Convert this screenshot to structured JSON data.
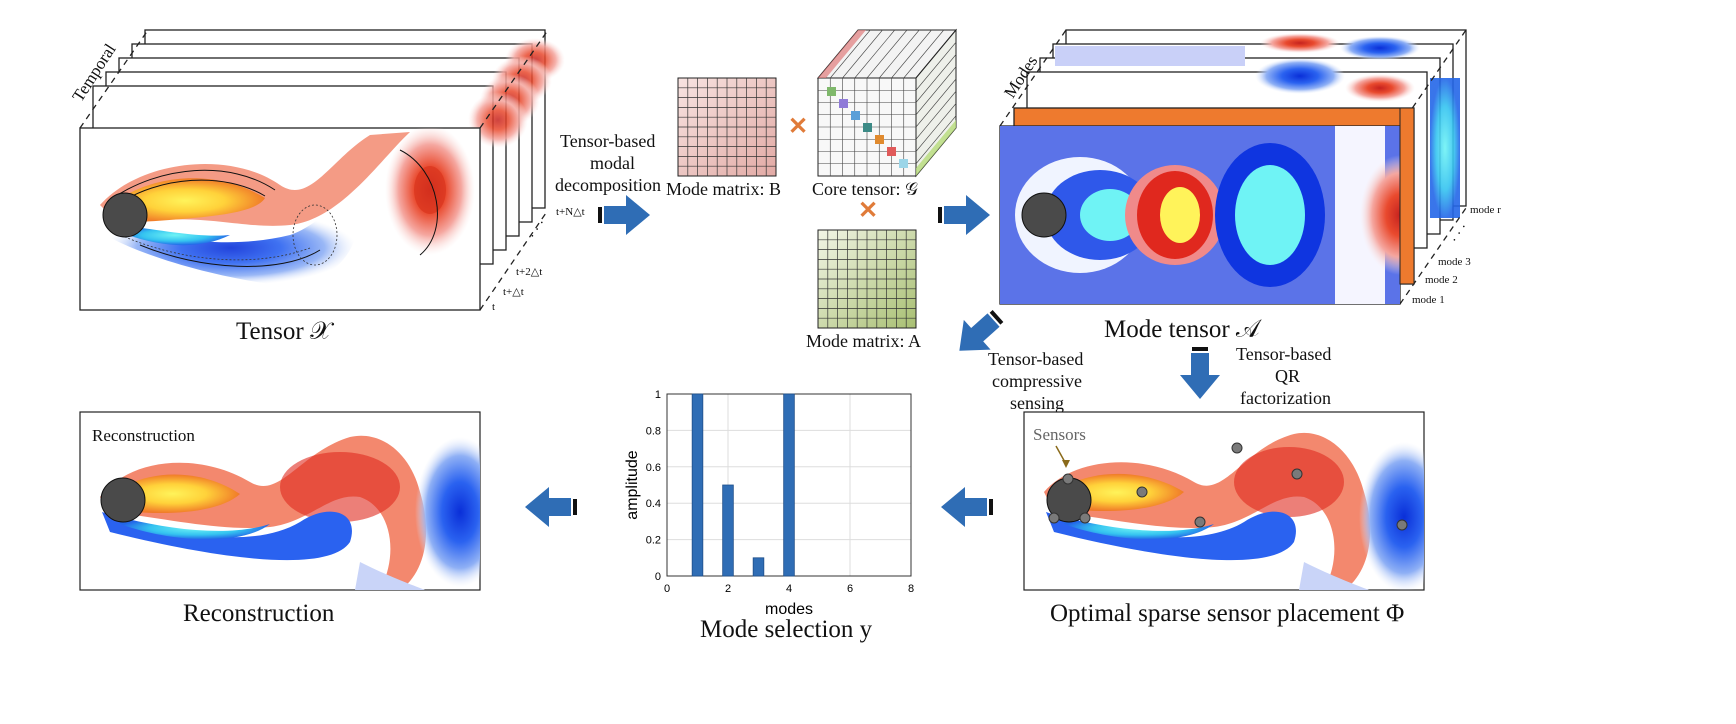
{
  "tensor_x": {
    "caption": "Tensor 𝒳",
    "axis_label": "Temporal",
    "time_labels": [
      "t",
      "t+△t",
      "t+2△t",
      "t+N△t"
    ]
  },
  "decomposition": {
    "label_line1": "Tensor-based",
    "label_line2": "modal",
    "label_line3": "decomposition",
    "mode_matrix_b": "Mode matrix: B",
    "core_tensor": "Core tensor: 𝒢",
    "mode_matrix_a": "Mode matrix: A",
    "times_symbol": "✕"
  },
  "mode_tensor": {
    "caption": "Mode tensor 𝒜",
    "axis_label": "Modes",
    "mode_labels": [
      "mode 1",
      "mode 2",
      "mode 3",
      "mode r"
    ]
  },
  "compressive_label": {
    "line1": "Tensor-based",
    "line2": "compressive",
    "line3": "sensing"
  },
  "qr_label": {
    "line1": "Tensor-based",
    "line2": "QR",
    "line3": "factorization"
  },
  "reconstruction": {
    "inner_label": "Reconstruction",
    "caption": "Reconstruction"
  },
  "sensor_panel": {
    "sensors_label": "Sensors",
    "caption": "Optimal sparse sensor placement Φ"
  },
  "mode_selection": {
    "caption": "Mode selection y"
  },
  "chart_data": {
    "type": "bar",
    "x": [
      1,
      2,
      3,
      4
    ],
    "values": [
      1.0,
      0.5,
      0.1,
      1.0
    ],
    "xlabel": "modes",
    "ylabel": "amplitude",
    "xlim": [
      0,
      8
    ],
    "ylim": [
      0,
      1
    ],
    "xticks": [
      "0",
      "2",
      "4",
      "6",
      "8"
    ],
    "yticks": [
      "0",
      "0.2",
      "0.4",
      "0.6",
      "0.8",
      "1"
    ],
    "grid": true,
    "bar_color": "#2f6db5"
  },
  "colors": {
    "arrow": "#2f6db5",
    "cylinder": "#4a4a4a",
    "times": "#e07b39"
  }
}
